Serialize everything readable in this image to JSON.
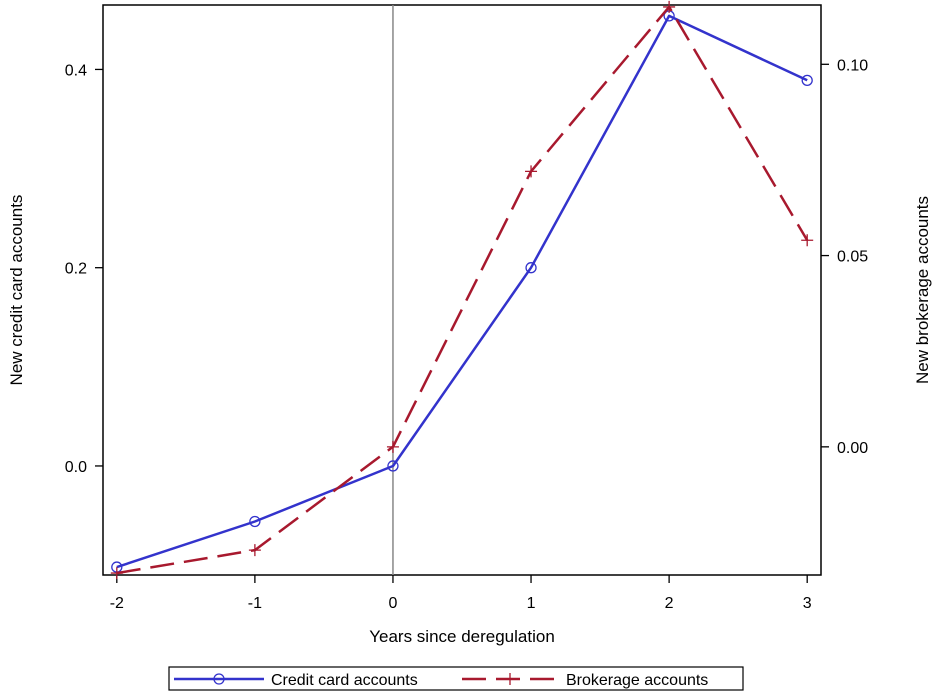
{
  "chart_data": {
    "type": "line",
    "xlabel": "Years since deregulation",
    "ylabel_left": "New credit card accounts",
    "ylabel_right": "New brokerage accounts",
    "x": [
      -2,
      -1,
      0,
      1,
      2,
      3
    ],
    "x_ticks": [
      "-2",
      "-1",
      "0",
      "1",
      "2",
      "3"
    ],
    "xlim": [
      -2.1,
      3.1
    ],
    "ylim_left": [
      -0.11,
      0.465
    ],
    "ylim_right": [
      -0.0335,
      0.1155
    ],
    "y_ticks_left": [
      {
        "value": 0.4,
        "label": "0.4"
      },
      {
        "value": 0.2,
        "label": "0.2"
      },
      {
        "value": 0.0,
        "label": "0.0"
      }
    ],
    "y_ticks_right": [
      {
        "value": 0.1,
        "label": "0.10"
      },
      {
        "value": 0.05,
        "label": "0.05"
      },
      {
        "value": 0.0,
        "label": "0.00"
      }
    ],
    "reference_line_x": 0,
    "series": [
      {
        "name": "Credit card accounts",
        "axis": "left",
        "color": "#3333cc",
        "marker": "circle",
        "dash": "solid",
        "values": [
          -0.102,
          -0.056,
          0.0,
          0.2,
          0.454,
          0.389
        ]
      },
      {
        "name": "Brokerage accounts",
        "axis": "right",
        "color": "#a8192e",
        "marker": "plus",
        "dash": "dashed",
        "values": [
          -0.033,
          -0.027,
          0.0,
          0.072,
          0.115,
          0.054
        ]
      }
    ],
    "legend": {
      "position": "bottom-center",
      "box": true
    }
  }
}
